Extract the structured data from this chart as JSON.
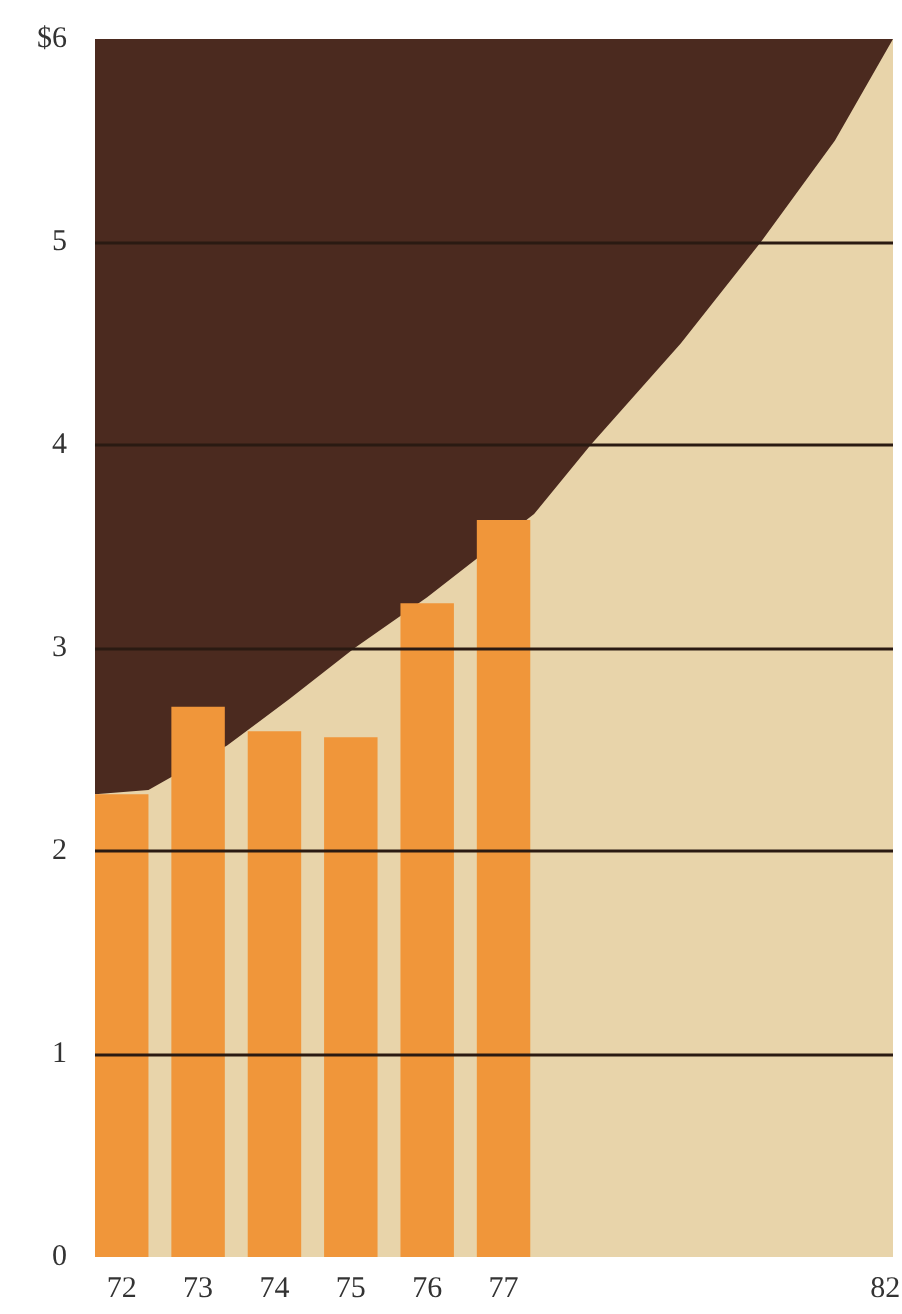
{
  "chart_data": {
    "type": "bar",
    "x": [
      72,
      73,
      74,
      75,
      76,
      77
    ],
    "series": [
      {
        "type": "area",
        "color": "#e8d4aa",
        "x": [
          71.65,
          72.35,
          73.38,
          74.2,
          75.05,
          76.0,
          77.4,
          78.14,
          79.32,
          80.37,
          81.34,
          82.1
        ],
        "values": [
          2.28,
          2.3,
          2.52,
          2.75,
          3.0,
          3.25,
          3.66,
          4.0,
          4.5,
          5.0,
          5.5,
          6.0
        ]
      },
      {
        "color": "#f0963a",
        "values": [
          2.28,
          2.71,
          2.59,
          2.56,
          3.22,
          3.63
        ]
      }
    ],
    "xlim": [
      71.65,
      82.1
    ],
    "ylim": [
      0,
      6
    ],
    "xticks": [
      72,
      73,
      74,
      75,
      76,
      77,
      82
    ],
    "yticks": [
      0,
      1,
      2,
      3,
      4,
      5,
      {
        "value": 6,
        "label": "$6"
      }
    ],
    "grid": "y"
  }
}
